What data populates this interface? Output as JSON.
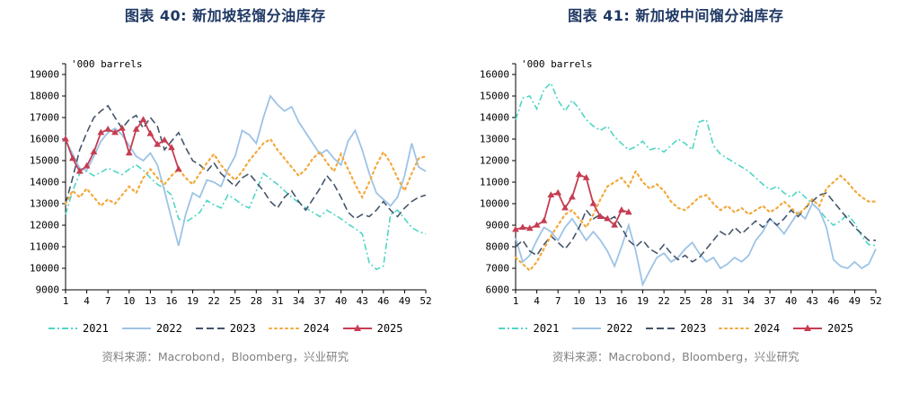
{
  "source_label": "资料来源：Macrobond，Bloomberg，兴业研究",
  "chart_data": [
    {
      "type": "line",
      "title": "图表 40: 新加坡轻馏分油库存",
      "unit_label": "'000 barrels",
      "ylim": [
        9000,
        19000
      ],
      "ytick_step": 1000,
      "x_range": [
        1,
        52
      ],
      "xticks": [
        1,
        4,
        7,
        10,
        13,
        16,
        19,
        22,
        25,
        28,
        31,
        34,
        37,
        40,
        43,
        46,
        49,
        52
      ],
      "legend_position": "bottom",
      "grid": false,
      "series": [
        {
          "name": "2021",
          "color": "#4fd5c5",
          "style": "dashdot",
          "marker": false,
          "values": [
            12500,
            13600,
            14400,
            14500,
            14300,
            14450,
            14650,
            14500,
            14350,
            14600,
            14800,
            14550,
            14200,
            13900,
            13700,
            13400,
            12300,
            12150,
            12350,
            12600,
            13150,
            12950,
            12800,
            13400,
            13200,
            12950,
            12800,
            13600,
            14400,
            14150,
            13900,
            13600,
            13300,
            13050,
            12800,
            12600,
            12400,
            12700,
            12500,
            12300,
            12050,
            11850,
            11600,
            10250,
            9950,
            10100,
            12500,
            12700,
            12300,
            11900,
            11700,
            11600
          ]
        },
        {
          "name": "2022",
          "color": "#9dc3e6",
          "style": "solid",
          "marker": false,
          "values": [
            15950,
            15300,
            14650,
            14550,
            15200,
            15900,
            16300,
            16500,
            16200,
            15700,
            15200,
            15000,
            15350,
            14800,
            13600,
            12300,
            11050,
            12500,
            13500,
            13300,
            14100,
            14000,
            13800,
            14600,
            15200,
            16400,
            16200,
            15800,
            17000,
            18000,
            17600,
            17300,
            17500,
            16800,
            16300,
            15800,
            15300,
            15500,
            15100,
            14800,
            15900,
            16400,
            15500,
            14400,
            13500,
            13200,
            12900,
            13300,
            14300,
            15800,
            14700,
            14500
          ]
        },
        {
          "name": "2023",
          "color": "#44546a",
          "style": "dash",
          "marker": false,
          "values": [
            13000,
            14200,
            15500,
            16300,
            17000,
            17300,
            17550,
            17000,
            16500,
            16900,
            17100,
            16500,
            17000,
            16600,
            15500,
            15900,
            16300,
            15600,
            15000,
            14800,
            14500,
            14900,
            14400,
            14100,
            13800,
            14200,
            14400,
            14000,
            13600,
            13100,
            12800,
            13300,
            13600,
            13100,
            12700,
            13200,
            13700,
            14300,
            13900,
            13300,
            12600,
            12300,
            12500,
            12400,
            12700,
            13100,
            12700,
            12400,
            12800,
            13100,
            13300,
            13400
          ]
        },
        {
          "name": "2024",
          "color": "#f2a93b",
          "style": "dot",
          "marker": false,
          "values": [
            13000,
            13600,
            13300,
            13700,
            13300,
            12900,
            13200,
            13000,
            13400,
            13800,
            13500,
            14200,
            14600,
            14200,
            13900,
            14300,
            14600,
            14200,
            13900,
            14400,
            14900,
            15300,
            14800,
            14400,
            14100,
            14500,
            15000,
            15400,
            15800,
            16000,
            15500,
            15100,
            14700,
            14300,
            14600,
            15100,
            15400,
            14900,
            14500,
            15300,
            14600,
            13900,
            13300,
            14000,
            14800,
            15400,
            14900,
            14200,
            13600,
            14400,
            15100,
            15200
          ]
        },
        {
          "name": "2025",
          "color": "#c63d52",
          "style": "solid",
          "marker": true,
          "values": [
            16000,
            15100,
            14500,
            14750,
            15400,
            16300,
            16450,
            16300,
            16500,
            15350,
            16450,
            16900,
            16250,
            15750,
            15950,
            15600,
            14600
          ]
        }
      ]
    },
    {
      "type": "line",
      "title": "图表 41: 新加坡中间馏分油库存",
      "unit_label": "'000 barrels",
      "ylim": [
        6000,
        16000
      ],
      "ytick_step": 1000,
      "x_range": [
        1,
        52
      ],
      "xticks": [
        1,
        4,
        7,
        10,
        13,
        16,
        19,
        22,
        25,
        28,
        31,
        34,
        37,
        40,
        43,
        46,
        49,
        52
      ],
      "legend_position": "bottom",
      "grid": false,
      "series": [
        {
          "name": "2021",
          "color": "#4fd5c5",
          "style": "dashdot",
          "marker": false,
          "values": [
            13900,
            14900,
            15000,
            14400,
            15300,
            15600,
            14800,
            14300,
            14800,
            14400,
            13900,
            13600,
            13400,
            13600,
            13100,
            12800,
            12500,
            12650,
            12900,
            12500,
            12600,
            12400,
            12700,
            13000,
            12800,
            12500,
            13800,
            13900,
            12700,
            12300,
            12100,
            11900,
            11700,
            11500,
            11200,
            10900,
            10650,
            10800,
            10500,
            10300,
            10600,
            10300,
            10000,
            9700,
            9300,
            9000,
            9200,
            9500,
            9100,
            8500,
            8100,
            8050
          ]
        },
        {
          "name": "2022",
          "color": "#9dc3e6",
          "style": "solid",
          "marker": false,
          "values": [
            8400,
            7300,
            7600,
            8300,
            8900,
            8700,
            8300,
            8900,
            9300,
            8800,
            8300,
            8700,
            8300,
            7800,
            7100,
            8000,
            9000,
            7800,
            6250,
            6900,
            7500,
            7700,
            7300,
            7500,
            7900,
            8200,
            7700,
            7300,
            7500,
            7000,
            7200,
            7500,
            7300,
            7600,
            8300,
            8700,
            9300,
            9000,
            8600,
            9100,
            9600,
            9300,
            10000,
            9700,
            8900,
            7400,
            7100,
            7000,
            7300,
            7000,
            7200,
            7900
          ]
        },
        {
          "name": "2023",
          "color": "#44546a",
          "style": "dash",
          "marker": false,
          "values": [
            8000,
            8300,
            7800,
            7600,
            8100,
            8500,
            8200,
            7900,
            8300,
            8900,
            9700,
            9300,
            9500,
            9200,
            9400,
            8900,
            8300,
            8000,
            8300,
            7900,
            7700,
            8100,
            7700,
            7400,
            7600,
            7300,
            7500,
            7900,
            8300,
            8700,
            8500,
            8900,
            8600,
            8900,
            9200,
            8900,
            9300,
            9000,
            9300,
            9700,
            9400,
            9800,
            10100,
            10400,
            10500,
            10100,
            9700,
            9300,
            8900,
            8600,
            8300,
            8300
          ]
        },
        {
          "name": "2024",
          "color": "#f2a93b",
          "style": "dot",
          "marker": false,
          "values": [
            7500,
            7200,
            6900,
            7300,
            7900,
            8500,
            9000,
            9500,
            9700,
            9300,
            8900,
            9500,
            10200,
            10800,
            11000,
            11200,
            10800,
            11500,
            11000,
            10700,
            10900,
            10600,
            10100,
            9800,
            9700,
            10000,
            10300,
            10400,
            10000,
            9700,
            9900,
            9600,
            9800,
            9500,
            9700,
            9900,
            9600,
            9800,
            10100,
            9800,
            9500,
            9800,
            10200,
            9900,
            10700,
            11000,
            11300,
            11000,
            10600,
            10300,
            10100,
            10100
          ]
        },
        {
          "name": "2025",
          "color": "#c63d52",
          "style": "solid",
          "marker": true,
          "values": [
            8800,
            8900,
            8850,
            9000,
            9200,
            10400,
            10500,
            9800,
            10300,
            11350,
            11200,
            10000,
            9400,
            9300,
            9000,
            9700,
            9600
          ]
        }
      ]
    }
  ]
}
